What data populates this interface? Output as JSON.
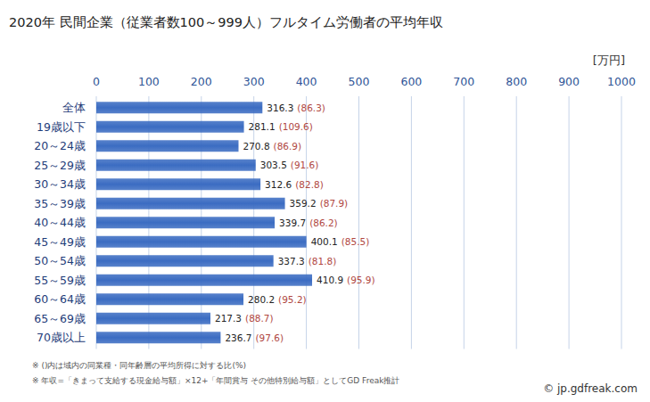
{
  "chart_data": {
    "type": "bar",
    "orientation": "horizontal",
    "title": "2020年 民間企業（従業者数100～999人）フルタイム労働者の平均年収",
    "x_label": "[万円]",
    "categories": [
      "全体",
      "19歳以下",
      "20～24歳",
      "25～29歳",
      "30～34歳",
      "35～39歳",
      "40～44歳",
      "45～49歳",
      "50～54歳",
      "55～59歳",
      "60～64歳",
      "65～69歳",
      "70歳以上"
    ],
    "values": [
      316.3,
      281.1,
      270.8,
      303.5,
      312.6,
      359.2,
      339.7,
      400.1,
      337.3,
      410.9,
      280.2,
      217.3,
      236.7
    ],
    "ratio_labels": [
      "(86.3)",
      "(109.6)",
      "(86.9)",
      "(91.6)",
      "(82.8)",
      "(87.9)",
      "(86.2)",
      "(85.5)",
      "(81.8)",
      "(95.9)",
      "(95.2)",
      "(88.7)",
      "(97.6)"
    ],
    "color": "#3b6cc2",
    "xlim": [
      0,
      1000
    ],
    "xticks": [
      0,
      100,
      200,
      300,
      400,
      500,
      600,
      700,
      800,
      900,
      1000
    ],
    "grid": true,
    "data_labels": true,
    "notes": [
      "※ ()内は域内の同業種・同年齢層の平均所得に対する比(%)",
      "※ 年収=「きまって支給する現金給与額」×12+「年間賞与 その他特別給与額」としてGD Freak推計"
    ],
    "credit": "© jp.gdfreak.com"
  }
}
